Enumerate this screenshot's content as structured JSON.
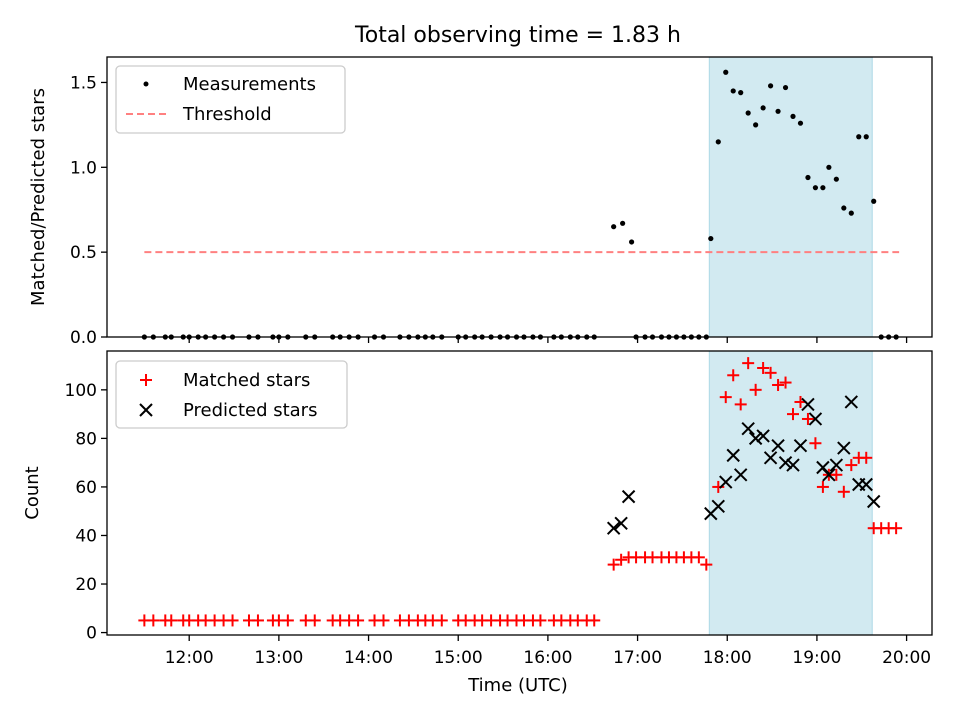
{
  "title": "Total observing time = 1.83 h",
  "colors": {
    "highlight": "#add8e6",
    "threshold": "#ff8080",
    "measurement": "#000000",
    "matched": "#ff0000",
    "predicted": "#000000"
  },
  "chart_data": [
    {
      "type": "scatter",
      "panel": "top",
      "ylabel": "Matched/Predicted stars",
      "xlim": [
        "11:05",
        "20:17"
      ],
      "ylim": [
        0,
        1.65
      ],
      "yticks": [
        0.0,
        0.5,
        1.0,
        1.5
      ],
      "ytick_labels": [
        "0.0",
        "0.5",
        "1.0",
        "1.5"
      ],
      "legend_position": "upper-left",
      "shaded_region": {
        "from": "17:48",
        "to": "19:37"
      },
      "series": [
        {
          "name": "Measurements",
          "marker": "dot",
          "points": [
            [
              "11:30",
              0
            ],
            [
              "11:36",
              0
            ],
            [
              "11:44",
              0
            ],
            [
              "11:48",
              0
            ],
            [
              "11:56",
              0
            ],
            [
              "12:00",
              0
            ],
            [
              "12:06",
              0
            ],
            [
              "12:11",
              0
            ],
            [
              "12:17",
              0
            ],
            [
              "12:23",
              0
            ],
            [
              "12:29",
              0
            ],
            [
              "12:40",
              0
            ],
            [
              "12:46",
              0
            ],
            [
              "12:56",
              0
            ],
            [
              "13:00",
              0
            ],
            [
              "13:06",
              0
            ],
            [
              "13:18",
              0
            ],
            [
              "13:24",
              0
            ],
            [
              "13:36",
              0
            ],
            [
              "13:41",
              0
            ],
            [
              "13:47",
              0
            ],
            [
              "13:53",
              0
            ],
            [
              "14:04",
              0
            ],
            [
              "14:10",
              0
            ],
            [
              "14:21",
              0
            ],
            [
              "14:27",
              0
            ],
            [
              "14:33",
              0
            ],
            [
              "14:38",
              0
            ],
            [
              "14:43",
              0
            ],
            [
              "14:49",
              0
            ],
            [
              "15:00",
              0
            ],
            [
              "15:05",
              0
            ],
            [
              "15:11",
              0
            ],
            [
              "15:16",
              0
            ],
            [
              "15:22",
              0
            ],
            [
              "15:28",
              0
            ],
            [
              "15:33",
              0
            ],
            [
              "15:39",
              0
            ],
            [
              "15:44",
              0
            ],
            [
              "15:50",
              0
            ],
            [
              "15:55",
              0
            ],
            [
              "16:04",
              0
            ],
            [
              "16:09",
              0
            ],
            [
              "16:15",
              0
            ],
            [
              "16:20",
              0
            ],
            [
              "16:26",
              0
            ],
            [
              "16:31",
              0
            ],
            [
              "16:44",
              0.65
            ],
            [
              "16:50",
              0.67
            ],
            [
              "16:56",
              0.56
            ],
            [
              "16:59",
              0
            ],
            [
              "17:05",
              0
            ],
            [
              "17:10",
              0
            ],
            [
              "17:16",
              0
            ],
            [
              "17:21",
              0
            ],
            [
              "17:26",
              0
            ],
            [
              "17:31",
              0
            ],
            [
              "17:36",
              0
            ],
            [
              "17:41",
              0
            ],
            [
              "17:46",
              0
            ],
            [
              "17:49",
              0.58
            ],
            [
              "17:54",
              1.15
            ],
            [
              "17:59",
              1.56
            ],
            [
              "18:04",
              1.45
            ],
            [
              "18:09",
              1.44
            ],
            [
              "18:14",
              1.32
            ],
            [
              "18:19",
              1.25
            ],
            [
              "18:24",
              1.35
            ],
            [
              "18:29",
              1.48
            ],
            [
              "18:34",
              1.33
            ],
            [
              "18:39",
              1.47
            ],
            [
              "18:44",
              1.3
            ],
            [
              "18:49",
              1.26
            ],
            [
              "18:54",
              0.94
            ],
            [
              "18:59",
              0.88
            ],
            [
              "19:04",
              0.88
            ],
            [
              "19:08",
              1.0
            ],
            [
              "19:13",
              0.93
            ],
            [
              "19:18",
              0.76
            ],
            [
              "19:23",
              0.73
            ],
            [
              "19:28",
              1.18
            ],
            [
              "19:33",
              1.18
            ],
            [
              "19:38",
              0.8
            ],
            [
              "19:43",
              0
            ],
            [
              "19:48",
              0
            ],
            [
              "19:53",
              0
            ]
          ]
        },
        {
          "name": "Threshold",
          "marker": "dashed-line",
          "x": [
            "11:30",
            "19:55"
          ],
          "y": [
            0.5,
            0.5
          ]
        }
      ]
    },
    {
      "type": "scatter",
      "panel": "bottom",
      "xlabel": "Time (UTC)",
      "ylabel": "Count",
      "xlim": [
        "11:05",
        "20:17"
      ],
      "ylim": [
        -1,
        116
      ],
      "xticks": [
        "12:00",
        "13:00",
        "14:00",
        "15:00",
        "16:00",
        "17:00",
        "18:00",
        "19:00",
        "20:00"
      ],
      "yticks": [
        0,
        20,
        40,
        60,
        80,
        100
      ],
      "ytick_labels": [
        "0",
        "20",
        "40",
        "60",
        "80",
        "100"
      ],
      "legend_position": "upper-left",
      "shaded_region": {
        "from": "17:48",
        "to": "19:37"
      },
      "series": [
        {
          "name": "Matched stars",
          "marker": "plus",
          "points": [
            [
              "11:30",
              5
            ],
            [
              "11:36",
              5
            ],
            [
              "11:44",
              5
            ],
            [
              "11:48",
              5
            ],
            [
              "11:56",
              5
            ],
            [
              "12:00",
              5
            ],
            [
              "12:06",
              5
            ],
            [
              "12:11",
              5
            ],
            [
              "12:17",
              5
            ],
            [
              "12:23",
              5
            ],
            [
              "12:29",
              5
            ],
            [
              "12:40",
              5
            ],
            [
              "12:46",
              5
            ],
            [
              "12:56",
              5
            ],
            [
              "13:00",
              5
            ],
            [
              "13:06",
              5
            ],
            [
              "13:18",
              5
            ],
            [
              "13:24",
              5
            ],
            [
              "13:36",
              5
            ],
            [
              "13:41",
              5
            ],
            [
              "13:47",
              5
            ],
            [
              "13:53",
              5
            ],
            [
              "14:04",
              5
            ],
            [
              "14:10",
              5
            ],
            [
              "14:21",
              5
            ],
            [
              "14:27",
              5
            ],
            [
              "14:33",
              5
            ],
            [
              "14:38",
              5
            ],
            [
              "14:43",
              5
            ],
            [
              "14:49",
              5
            ],
            [
              "15:00",
              5
            ],
            [
              "15:05",
              5
            ],
            [
              "15:11",
              5
            ],
            [
              "15:16",
              5
            ],
            [
              "15:22",
              5
            ],
            [
              "15:28",
              5
            ],
            [
              "15:33",
              5
            ],
            [
              "15:39",
              5
            ],
            [
              "15:44",
              5
            ],
            [
              "15:50",
              5
            ],
            [
              "15:55",
              5
            ],
            [
              "16:04",
              5
            ],
            [
              "16:09",
              5
            ],
            [
              "16:15",
              5
            ],
            [
              "16:20",
              5
            ],
            [
              "16:26",
              5
            ],
            [
              "16:31",
              5
            ],
            [
              "16:44",
              28
            ],
            [
              "16:49",
              30
            ],
            [
              "16:54",
              31
            ],
            [
              "16:59",
              31
            ],
            [
              "17:05",
              31
            ],
            [
              "17:10",
              31
            ],
            [
              "17:16",
              31
            ],
            [
              "17:21",
              31
            ],
            [
              "17:26",
              31
            ],
            [
              "17:31",
              31
            ],
            [
              "17:36",
              31
            ],
            [
              "17:41",
              31
            ],
            [
              "17:46",
              28
            ],
            [
              "17:54",
              60
            ],
            [
              "17:59",
              97
            ],
            [
              "18:04",
              106
            ],
            [
              "18:09",
              94
            ],
            [
              "18:14",
              111
            ],
            [
              "18:19",
              100
            ],
            [
              "18:24",
              109
            ],
            [
              "18:29",
              107
            ],
            [
              "18:34",
              102
            ],
            [
              "18:39",
              103
            ],
            [
              "18:44",
              90
            ],
            [
              "18:49",
              95
            ],
            [
              "18:54",
              88
            ],
            [
              "18:59",
              78
            ],
            [
              "19:04",
              60
            ],
            [
              "19:08",
              65
            ],
            [
              "19:13",
              65
            ],
            [
              "19:18",
              58
            ],
            [
              "19:23",
              69
            ],
            [
              "19:28",
              72
            ],
            [
              "19:33",
              72
            ],
            [
              "19:38",
              43
            ],
            [
              "19:43",
              43
            ],
            [
              "19:48",
              43
            ],
            [
              "19:53",
              43
            ]
          ]
        },
        {
          "name": "Predicted stars",
          "marker": "cross",
          "points": [
            [
              "16:44",
              43
            ],
            [
              "16:49",
              45
            ],
            [
              "16:54",
              56
            ],
            [
              "17:49",
              49
            ],
            [
              "17:54",
              52
            ],
            [
              "17:59",
              62
            ],
            [
              "18:04",
              73
            ],
            [
              "18:09",
              65
            ],
            [
              "18:14",
              84
            ],
            [
              "18:19",
              80
            ],
            [
              "18:24",
              81
            ],
            [
              "18:29",
              72
            ],
            [
              "18:34",
              77
            ],
            [
              "18:39",
              70
            ],
            [
              "18:44",
              69
            ],
            [
              "18:49",
              77
            ],
            [
              "18:54",
              94
            ],
            [
              "18:59",
              88
            ],
            [
              "19:04",
              68
            ],
            [
              "19:08",
              65
            ],
            [
              "19:13",
              69
            ],
            [
              "19:18",
              76
            ],
            [
              "19:23",
              95
            ],
            [
              "19:28",
              61
            ],
            [
              "19:33",
              61
            ],
            [
              "19:38",
              54
            ]
          ]
        }
      ]
    }
  ]
}
